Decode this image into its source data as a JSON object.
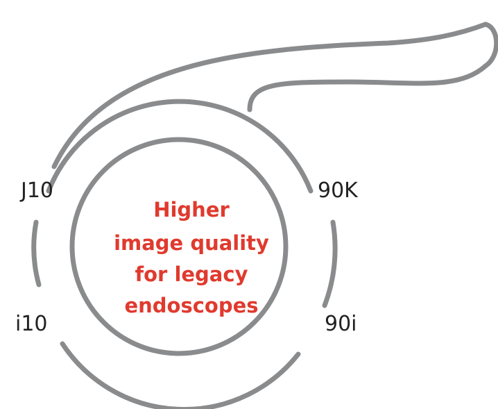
{
  "center_text": [
    "Higher",
    "image quality",
    "for legacy",
    "endoscopes"
  ],
  "labels": {
    "top_left": "J10",
    "top_right": "90K",
    "bottom_left": "i10",
    "bottom_right": "90i"
  }
}
